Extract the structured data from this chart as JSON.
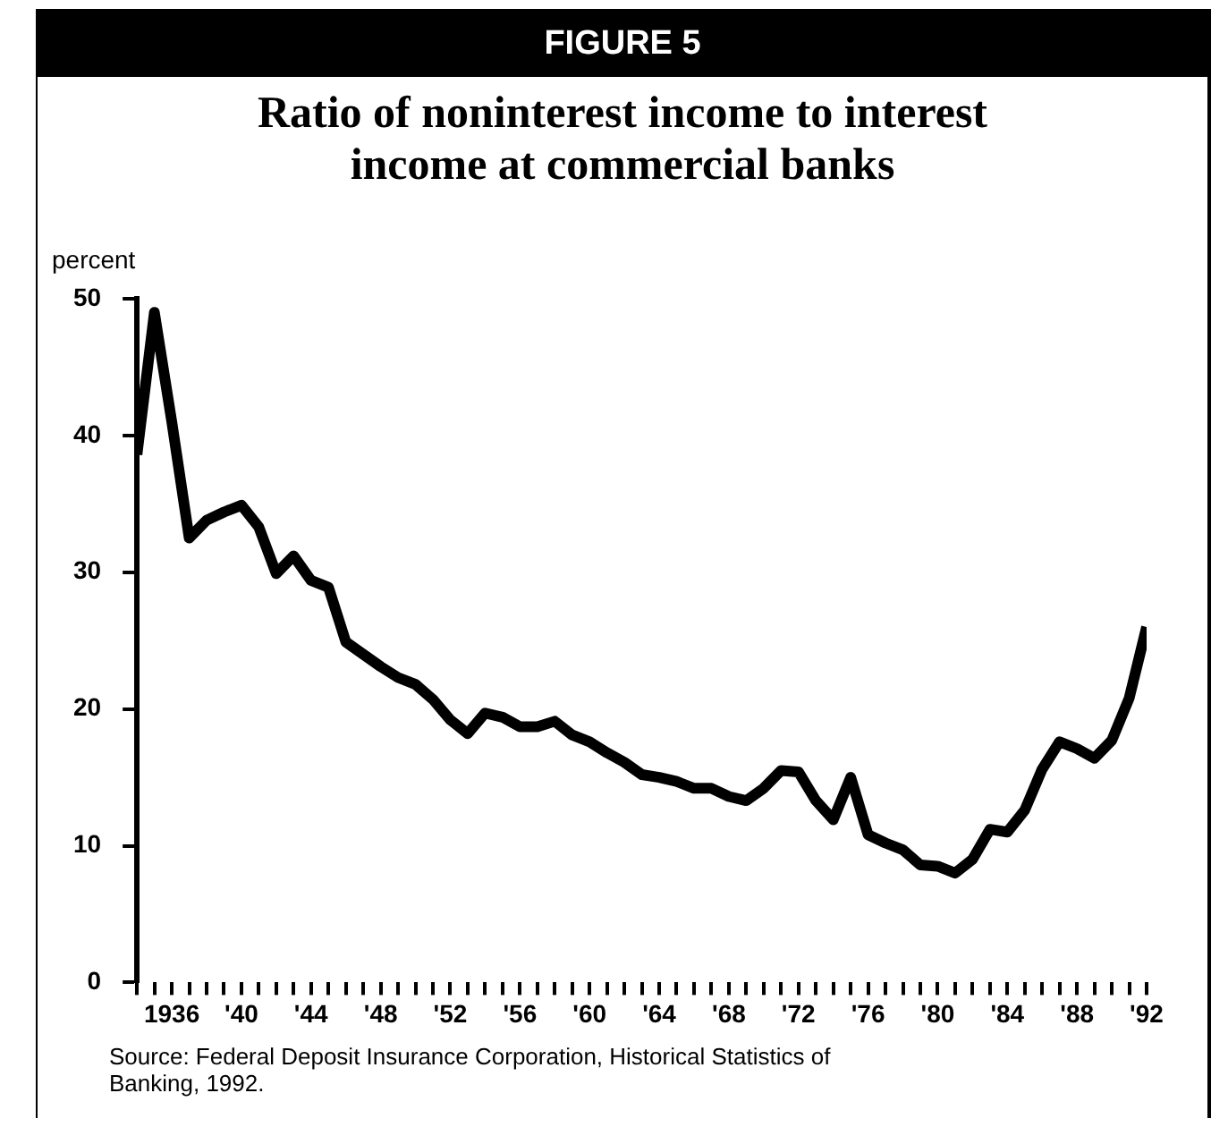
{
  "chart_data": {
    "type": "line",
    "title": "FIGURE 5",
    "subtitle": "Ratio of noninterest income to interest income at commercial banks",
    "ylabel": "percent",
    "x": [
      1934,
      1935,
      1936,
      1937,
      1938,
      1939,
      1940,
      1941,
      1942,
      1943,
      1944,
      1945,
      1946,
      1947,
      1948,
      1949,
      1950,
      1951,
      1952,
      1953,
      1954,
      1955,
      1956,
      1957,
      1958,
      1959,
      1960,
      1961,
      1962,
      1963,
      1964,
      1965,
      1966,
      1967,
      1968,
      1969,
      1970,
      1971,
      1972,
      1973,
      1974,
      1975,
      1976,
      1977,
      1978,
      1979,
      1980,
      1981,
      1982,
      1983,
      1984,
      1985,
      1986,
      1987,
      1988,
      1989,
      1990,
      1991,
      1992
    ],
    "series": [
      {
        "color": "#000000",
        "values": [
          38.6,
          49,
          41,
          32.5,
          33.8,
          34.4,
          34.9,
          33.3,
          29.9,
          31.2,
          29.4,
          28.9,
          24.9,
          24,
          23.1,
          22.3,
          21.8,
          20.7,
          19.2,
          18.2,
          19.7,
          19.4,
          18.7,
          18.7,
          19.1,
          18.1,
          17.6,
          16.8,
          16.1,
          15.2,
          15,
          14.7,
          14.2,
          14.2,
          13.6,
          13.3,
          14.2,
          15.5,
          15.4,
          13.3,
          11.9,
          15,
          10.8,
          10.2,
          9.7,
          8.6,
          8.5,
          8,
          9,
          11.2,
          11,
          12.6,
          15.6,
          17.6,
          17.1,
          16.4,
          17.7,
          20.8,
          26
        ]
      }
    ],
    "xlim": [
      1934,
      1992
    ],
    "xticks": [
      {
        "value": 1934,
        "label": null
      },
      {
        "value": 1935,
        "label": null
      },
      {
        "value": 1936,
        "label": "1936"
      },
      {
        "value": 1937,
        "label": null
      },
      {
        "value": 1938,
        "label": null
      },
      {
        "value": 1939,
        "label": null
      },
      {
        "value": 1940,
        "label": "'40"
      },
      {
        "value": 1941,
        "label": null
      },
      {
        "value": 1942,
        "label": null
      },
      {
        "value": 1943,
        "label": null
      },
      {
        "value": 1944,
        "label": "'44"
      },
      {
        "value": 1945,
        "label": null
      },
      {
        "value": 1946,
        "label": null
      },
      {
        "value": 1947,
        "label": null
      },
      {
        "value": 1948,
        "label": "'48"
      },
      {
        "value": 1949,
        "label": null
      },
      {
        "value": 1950,
        "label": null
      },
      {
        "value": 1951,
        "label": null
      },
      {
        "value": 1952,
        "label": "'52"
      },
      {
        "value": 1953,
        "label": null
      },
      {
        "value": 1954,
        "label": null
      },
      {
        "value": 1955,
        "label": null
      },
      {
        "value": 1956,
        "label": "'56"
      },
      {
        "value": 1957,
        "label": null
      },
      {
        "value": 1958,
        "label": null
      },
      {
        "value": 1959,
        "label": null
      },
      {
        "value": 1960,
        "label": "'60"
      },
      {
        "value": 1961,
        "label": null
      },
      {
        "value": 1962,
        "label": null
      },
      {
        "value": 1963,
        "label": null
      },
      {
        "value": 1964,
        "label": "'64"
      },
      {
        "value": 1965,
        "label": null
      },
      {
        "value": 1966,
        "label": null
      },
      {
        "value": 1967,
        "label": null
      },
      {
        "value": 1968,
        "label": "'68"
      },
      {
        "value": 1969,
        "label": null
      },
      {
        "value": 1970,
        "label": null
      },
      {
        "value": 1971,
        "label": null
      },
      {
        "value": 1972,
        "label": "'72"
      },
      {
        "value": 1973,
        "label": null
      },
      {
        "value": 1974,
        "label": null
      },
      {
        "value": 1975,
        "label": null
      },
      {
        "value": 1976,
        "label": "'76"
      },
      {
        "value": 1977,
        "label": null
      },
      {
        "value": 1978,
        "label": null
      },
      {
        "value": 1979,
        "label": null
      },
      {
        "value": 1980,
        "label": "'80"
      },
      {
        "value": 1981,
        "label": null
      },
      {
        "value": 1982,
        "label": null
      },
      {
        "value": 1983,
        "label": null
      },
      {
        "value": 1984,
        "label": "'84"
      },
      {
        "value": 1985,
        "label": null
      },
      {
        "value": 1986,
        "label": null
      },
      {
        "value": 1987,
        "label": null
      },
      {
        "value": 1988,
        "label": "'88"
      },
      {
        "value": 1989,
        "label": null
      },
      {
        "value": 1990,
        "label": null
      },
      {
        "value": 1991,
        "label": null
      },
      {
        "value": 1992,
        "label": "'92"
      }
    ],
    "ylim": [
      0,
      50
    ],
    "yticks": [
      0,
      10,
      20,
      30,
      40,
      50
    ],
    "grid": false,
    "legend": false,
    "marker": "none",
    "line_style": "solid",
    "annotations": [
      "Source: Federal Deposit Insurance Corporation, Historical Statistics of Banking, 1992."
    ]
  }
}
